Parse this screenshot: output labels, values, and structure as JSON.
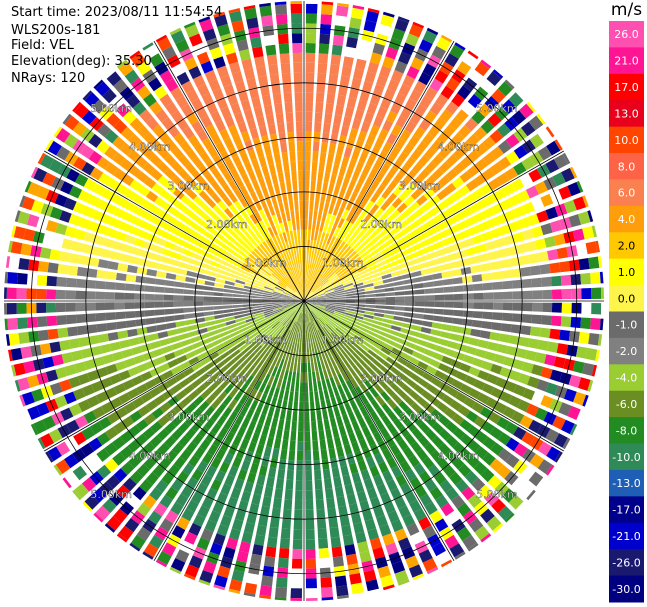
{
  "header": {
    "start_time": "Start time: 2023/08/11 11:54:54",
    "instrument": "WLS200s-181",
    "field": "Field: VEL",
    "elevation": "Elevation(deg): 35.30",
    "nrays": "NRays: 120"
  },
  "chart_data": {
    "type": "heatmap",
    "projection": "polar PPI",
    "field": "VEL",
    "units": "m/s",
    "nrays": 120,
    "elevation_deg": 35.3,
    "range_rings_km": [
      1.0,
      2.0,
      3.0,
      4.0,
      5.0
    ],
    "max_range_km": 5.5,
    "range_labels": [
      "1.00km",
      "2.00km",
      "3.00km",
      "4.00km",
      "5.00km"
    ],
    "colorbar": {
      "unit_label": "m/s",
      "tick_labels": [
        "26.0",
        "21.0",
        "17.0",
        "13.0",
        "10.0",
        "8.0",
        "6.0",
        "4.0",
        "2.0",
        "1.0",
        "0.0",
        "-1.0",
        "-2.0",
        "-4.0",
        "-6.0",
        "-8.0",
        "-10.0",
        "-13.0",
        "-17.0",
        "-21.0",
        "-26.0",
        "-30.0"
      ],
      "colors": [
        "#ff4fb0",
        "#ff1493",
        "#ff0000",
        "#e8001c",
        "#ff4500",
        "#ff6347",
        "#fa8050",
        "#ff9e0a",
        "#ffc800",
        "#ffff00",
        "#fff44a",
        "#6b6b6b",
        "#808080",
        "#9acd32",
        "#6b8e23",
        "#228b22",
        "#2e8b57",
        "#1e5eb4",
        "#00008b",
        "#0000cd",
        "#191970",
        "#000080"
      ]
    },
    "velocity_pattern": "approaching (negative) from south, receding (positive) from north; noisy beyond ~4.5 km"
  }
}
